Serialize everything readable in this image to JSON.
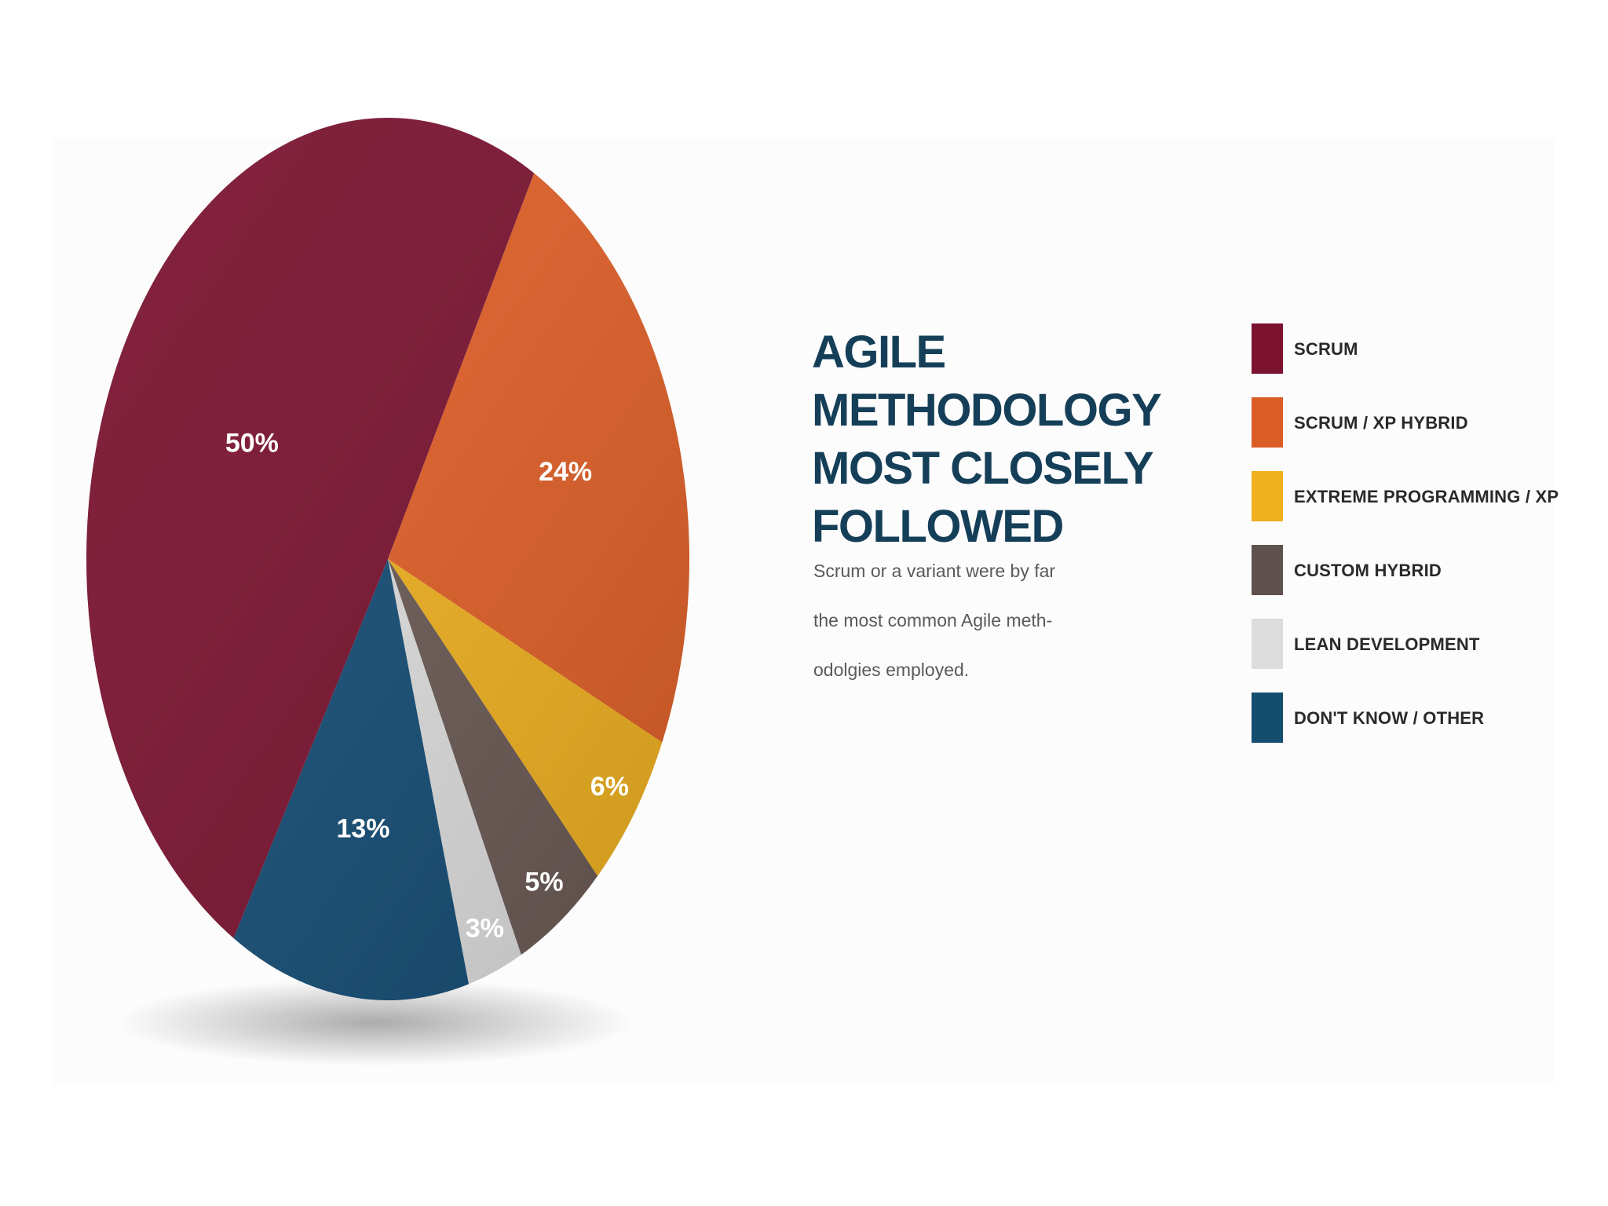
{
  "title_lines": [
    "AGILE METHODOLOGY",
    "MOST CLOSELY",
    "FOLLOWED"
  ],
  "subtitle_lines": [
    "Scrum or a variant were by far",
    "the most common Agile meth-",
    "odolgies employed."
  ],
  "chart_data": {
    "type": "pie",
    "title": "AGILE METHODOLOGY MOST CLOSELY FOLLOWED",
    "start_category": "SCRUM / XP HYBRID",
    "direction": "clockwise",
    "slices": [
      {
        "category": "SCRUM",
        "value": 50,
        "label": "50%",
        "color": "#7a1230"
      },
      {
        "category": "SCRUM / XP HYBRID",
        "value": 24,
        "label": "24%",
        "color": "#e05f27"
      },
      {
        "category": "EXTREME PROGRAMMING / XP",
        "value": 6,
        "label": "6%",
        "color": "#f0b11f"
      },
      {
        "category": "CUSTOM HYBRID",
        "value": 5,
        "label": "5%",
        "color": "#6b5a55"
      },
      {
        "category": "LEAN DEVELOPMENT",
        "value": 3,
        "label": "3%",
        "color": "#dedede"
      },
      {
        "category": "DON'T KNOW / OTHER",
        "value": 13,
        "label": "13%",
        "color": "#144d75"
      }
    ],
    "legend_position": "right"
  },
  "legend": [
    {
      "label": "SCRUM",
      "color": "#7a1230"
    },
    {
      "label": "SCRUM / XP HYBRID",
      "color": "#db5d26"
    },
    {
      "label": "EXTREME PROGRAMMING / XP",
      "color": "#f0b11f"
    },
    {
      "label": "CUSTOM HYBRID",
      "color": "#5f514d"
    },
    {
      "label": "LEAN DEVELOPMENT",
      "color": "#dcdcdc"
    },
    {
      "label": "DON'T KNOW / OTHER",
      "color": "#144d6e"
    }
  ]
}
